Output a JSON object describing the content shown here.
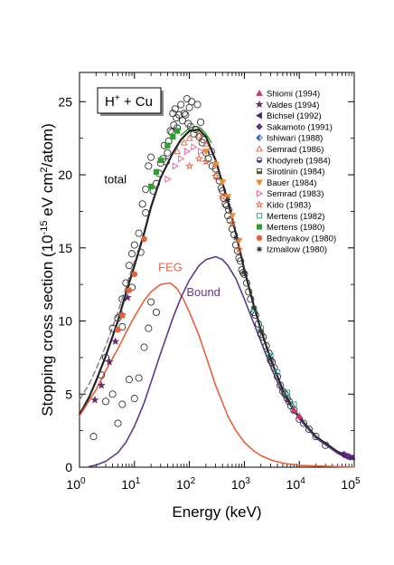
{
  "chart_data": {
    "type": "line",
    "title_box": {
      "main": "H",
      "sup": "+",
      "rest": " + Cu"
    },
    "xlabel": "Energy (keV)",
    "ylabel": {
      "pre": "Stopping cross section (10",
      "sup1": "-15",
      "mid": " eV cm",
      "sup2": "2",
      "post": "/atom)"
    },
    "xscale": "log",
    "xlim": [
      1,
      100000
    ],
    "ylim": [
      0,
      27
    ],
    "x_ticks": [
      {
        "base": "10",
        "exp": "0",
        "value": 1
      },
      {
        "base": "10",
        "exp": "1",
        "value": 10
      },
      {
        "base": "10",
        "exp": "2",
        "value": 100
      },
      {
        "base": "10",
        "exp": "3",
        "value": 1000
      },
      {
        "base": "10",
        "exp": "4",
        "value": 10000
      },
      {
        "base": "10",
        "exp": "5",
        "value": 100000
      }
    ],
    "y_ticks": [
      "0",
      "5",
      "10",
      "15",
      "20",
      "25"
    ],
    "y_tick_values": [
      0,
      5,
      10,
      15,
      20,
      25
    ],
    "colors": {
      "total": "#222222",
      "feg": "#e8603a",
      "bound": "#5e3a8c",
      "green": "#2ca02c",
      "dashed": "#7a7a7a"
    },
    "annotations": [
      {
        "key": "total",
        "text": "total",
        "x": 4.5,
        "y": 19.4,
        "color": "#000000"
      },
      {
        "key": "feg",
        "text": "FEG",
        "x": 45,
        "y": 13.4,
        "color": "#e8603a"
      },
      {
        "key": "bound",
        "text": "Bound",
        "x": 180,
        "y": 11.7,
        "color": "#5e3a8c"
      }
    ],
    "series": [
      {
        "key": "total",
        "style": "solid",
        "color": "#222222",
        "width": 2.2,
        "x": [
          1,
          1.5,
          2,
          3,
          5,
          7,
          10,
          15,
          20,
          30,
          50,
          70,
          100,
          150,
          200,
          300,
          500,
          700,
          1000,
          1500,
          2000,
          3000,
          5000,
          7000,
          10000,
          20000,
          50000,
          100000
        ],
        "y": [
          3.6,
          4.8,
          5.9,
          7.6,
          10.0,
          11.9,
          13.8,
          16.0,
          17.8,
          19.8,
          21.5,
          22.4,
          23.0,
          23.1,
          22.6,
          21.0,
          18.2,
          16.0,
          13.5,
          11.0,
          9.4,
          7.4,
          5.3,
          4.3,
          3.4,
          2.1,
          1.05,
          0.6
        ]
      },
      {
        "key": "dashed",
        "style": "dashed",
        "color": "#7a7a7a",
        "width": 1.4,
        "x": [
          1,
          1.5,
          2,
          3,
          5,
          7,
          10
        ],
        "y": [
          4.6,
          5.7,
          6.7,
          8.3,
          10.6,
          12.3,
          14.1
        ]
      },
      {
        "key": "green",
        "style": "solid",
        "color": "#2ca02c",
        "width": 1.4,
        "x": [
          70,
          100,
          130,
          160,
          200,
          250
        ],
        "y": [
          22.7,
          23.2,
          23.3,
          23.2,
          22.8,
          22.2
        ]
      },
      {
        "key": "feg",
        "style": "solid",
        "color": "#e8603a",
        "width": 1.6,
        "x": [
          1,
          2,
          3,
          5,
          7,
          10,
          15,
          20,
          30,
          45,
          60,
          80,
          100,
          150,
          200,
          300,
          500,
          700,
          1000,
          1500,
          2000,
          3000,
          5000,
          10000,
          100000
        ],
        "y": [
          3.5,
          5.3,
          6.6,
          8.1,
          9.2,
          10.3,
          11.4,
          12.0,
          12.5,
          12.6,
          12.2,
          11.4,
          10.6,
          9.0,
          7.6,
          5.6,
          3.5,
          2.5,
          1.7,
          1.1,
          0.8,
          0.5,
          0.28,
          0.12,
          0.01
        ]
      },
      {
        "key": "bound",
        "style": "solid",
        "color": "#5e3a8c",
        "width": 1.6,
        "x": [
          1.5,
          2,
          3,
          5,
          7,
          10,
          15,
          20,
          30,
          50,
          70,
          100,
          150,
          200,
          300,
          400,
          500,
          700,
          1000,
          1500,
          2000,
          3000,
          5000,
          10000,
          20000,
          50000,
          100000
        ],
        "y": [
          0.05,
          0.15,
          0.4,
          1.0,
          1.7,
          2.8,
          4.4,
          5.8,
          7.8,
          10.2,
          11.6,
          12.8,
          13.8,
          14.2,
          14.4,
          14.2,
          13.8,
          12.9,
          11.5,
          9.8,
          8.6,
          6.9,
          5.0,
          3.3,
          2.0,
          0.95,
          0.55
        ]
      }
    ],
    "legend": [
      {
        "label": "Shiomi (1994)",
        "marker": "triangle-up",
        "color": "#d6336c"
      },
      {
        "label": "Valdes (1994)",
        "marker": "star",
        "color": "#6b2a6b"
      },
      {
        "label": "Bichsel (1992)",
        "marker": "triangle-left",
        "color": "#4b2370"
      },
      {
        "label": "Sakamoto (1991)",
        "marker": "diamond",
        "color": "#5e2f86"
      },
      {
        "label": "Ishiwari (1988)",
        "marker": "half-diamond",
        "color": "#3d6bb0"
      },
      {
        "label": "Semrad (1986)",
        "marker": "triangle-up-open",
        "color": "#e8603a"
      },
      {
        "label": "Khodyreb (1984)",
        "marker": "half-circle",
        "color": "#5e3a8c"
      },
      {
        "label": "Sirotinin (1984)",
        "marker": "half-square",
        "color": "#555533"
      },
      {
        "label": "Bauer (1984)",
        "marker": "triangle-down",
        "color": "#f08a30"
      },
      {
        "label": "Semrad (1983)",
        "marker": "triangle-right-open",
        "color": "#e85a9a"
      },
      {
        "label": "Kido (1983)",
        "marker": "star-open",
        "color": "#e8603a"
      },
      {
        "label": "Mertens (1982)",
        "marker": "square-open",
        "color": "#2a9a8a"
      },
      {
        "label": "Mertens (1980)",
        "marker": "square",
        "color": "#2ca02c"
      },
      {
        "label": "Bednyakov (1980)",
        "marker": "circle",
        "color": "#e8603a"
      },
      {
        "label": "Izmailow (1980)",
        "marker": "asterisk",
        "color": "#333333"
      }
    ],
    "scatter_groups": [
      {
        "marker": "circle-open",
        "color": "#333333",
        "points": [
          [
            1.8,
            2.1
          ],
          [
            3,
            4.5
          ],
          [
            4,
            5
          ],
          [
            5,
            3
          ],
          [
            6,
            4.3
          ],
          [
            8,
            6
          ],
          [
            10,
            4.7
          ],
          [
            12,
            6.1
          ],
          [
            15,
            8.2
          ],
          [
            18,
            9.5
          ],
          [
            20,
            11.3
          ],
          [
            25,
            10.6
          ],
          [
            3,
            7.5
          ],
          [
            4,
            9.5
          ],
          [
            5,
            10.2
          ],
          [
            6,
            11.5
          ],
          [
            7,
            12.6
          ],
          [
            8,
            13.8
          ],
          [
            9,
            14.6
          ],
          [
            10,
            15.2
          ],
          [
            12,
            16
          ],
          [
            14,
            18
          ],
          [
            16,
            19
          ],
          [
            18,
            20.6
          ],
          [
            20,
            21.2
          ],
          [
            25,
            19.4
          ],
          [
            30,
            20.8
          ],
          [
            35,
            22
          ],
          [
            40,
            21.5
          ],
          [
            45,
            23
          ],
          [
            50,
            24.2
          ],
          [
            55,
            24.5
          ],
          [
            60,
            23.2
          ],
          [
            70,
            24.8
          ],
          [
            80,
            24.2
          ],
          [
            90,
            25.2
          ],
          [
            100,
            24.6
          ],
          [
            110,
            25
          ],
          [
            120,
            22.8
          ],
          [
            140,
            24.8
          ],
          [
            160,
            23.6
          ],
          [
            180,
            22.4
          ],
          [
            200,
            21.5
          ],
          [
            250,
            21.6
          ],
          [
            300,
            20.4
          ],
          [
            350,
            19.6
          ],
          [
            400,
            18.9
          ],
          [
            450,
            18
          ],
          [
            500,
            17.2
          ],
          [
            550,
            16.9
          ],
          [
            600,
            16.3
          ],
          [
            700,
            15.2
          ],
          [
            800,
            14.3
          ],
          [
            900,
            13.5
          ],
          [
            1000,
            13.2
          ],
          [
            1200,
            12
          ],
          [
            1500,
            10.6
          ],
          [
            1800,
            9.8
          ],
          [
            2000,
            9.1
          ],
          [
            2500,
            8.3
          ],
          [
            3000,
            7.3
          ],
          [
            3500,
            6.8
          ],
          [
            4000,
            6.2
          ],
          [
            5000,
            5.2
          ],
          [
            6000,
            4.7
          ],
          [
            7000,
            4.2
          ],
          [
            8000,
            3.9
          ],
          [
            10000,
            3.3
          ],
          [
            12000,
            3
          ],
          [
            15000,
            2.6
          ],
          [
            20000,
            2.1
          ],
          [
            30000,
            1.5
          ],
          [
            2.5,
            6.3
          ],
          [
            6,
            9.6
          ],
          [
            9,
            12.3
          ],
          [
            13,
            14.7
          ],
          [
            16,
            17.4
          ],
          [
            22,
            18.9
          ],
          [
            28,
            20.1
          ],
          [
            33,
            21.1
          ],
          [
            38,
            20.9
          ],
          [
            42,
            22.3
          ],
          [
            48,
            22.9
          ],
          [
            52,
            23.4
          ],
          [
            58,
            23.9
          ],
          [
            65,
            24.1
          ],
          [
            75,
            23.7
          ],
          [
            85,
            24.1
          ],
          [
            95,
            23.5
          ],
          [
            105,
            23.3
          ],
          [
            130,
            23.1
          ],
          [
            150,
            22.6
          ],
          [
            170,
            22.2
          ],
          [
            220,
            21.1
          ],
          [
            260,
            20.6
          ],
          [
            320,
            19.9
          ],
          [
            380,
            19.1
          ],
          [
            420,
            18.4
          ],
          [
            480,
            17.9
          ],
          [
            520,
            17.6
          ],
          [
            650,
            15.9
          ],
          [
            750,
            14.8
          ],
          [
            850,
            14.1
          ],
          [
            950,
            13.3
          ],
          [
            1100,
            12.6
          ],
          [
            1300,
            11.5
          ],
          [
            1600,
            10.4
          ],
          [
            2200,
            8.9
          ],
          [
            2800,
            7.8
          ],
          [
            3200,
            7.2
          ],
          [
            4500,
            5.6
          ],
          [
            5500,
            5.0
          ],
          [
            6500,
            4.5
          ]
        ]
      },
      {
        "marker": "star",
        "color": "#6b2a6b",
        "points": [
          [
            1.9,
            4.6
          ],
          [
            2.5,
            5.6
          ],
          [
            3.5,
            7.2
          ],
          [
            4.5,
            8.6
          ],
          [
            6,
            10.4
          ],
          [
            7.5,
            11.6
          ]
        ]
      },
      {
        "marker": "triangle-up-open",
        "color": "#e8603a",
        "points": [
          [
            60,
            21.6
          ],
          [
            80,
            22.2
          ],
          [
            100,
            22.5
          ],
          [
            150,
            22.7
          ],
          [
            200,
            22.1
          ],
          [
            300,
            20.8
          ]
        ]
      },
      {
        "marker": "triangle-right-open",
        "color": "#e85a9a",
        "points": [
          [
            40,
            19.7
          ],
          [
            55,
            20.6
          ],
          [
            70,
            21.1
          ],
          [
            90,
            21.6
          ],
          [
            120,
            21.9
          ],
          [
            160,
            21.6
          ]
        ]
      },
      {
        "marker": "star-open",
        "color": "#e8603a",
        "points": [
          [
            100,
            20.6
          ],
          [
            150,
            21.1
          ],
          [
            200,
            20.9
          ],
          [
            300,
            19.9
          ],
          [
            400,
            18.5
          ],
          [
            600,
            16.7
          ],
          [
            800,
            14.9
          ]
        ]
      },
      {
        "marker": "triangle-down",
        "color": "#f08a30",
        "points": [
          [
            200,
            21.6
          ],
          [
            300,
            20.7
          ],
          [
            400,
            19.5
          ],
          [
            500,
            18.5
          ],
          [
            600,
            17.2
          ],
          [
            800,
            15.5
          ]
        ]
      },
      {
        "marker": "square",
        "color": "#2ca02c",
        "points": [
          [
            20,
            19.2
          ],
          [
            25,
            20.2
          ],
          [
            30,
            21
          ],
          [
            40,
            22
          ],
          [
            50,
            22.6
          ],
          [
            60,
            23
          ]
        ]
      },
      {
        "marker": "square-open",
        "color": "#2a9a8a",
        "points": [
          [
            1500,
            10.8
          ],
          [
            2000,
            9.5
          ],
          [
            3000,
            7.6
          ],
          [
            4000,
            6.5
          ],
          [
            6000,
            5.1
          ],
          [
            8000,
            4.3
          ]
        ]
      },
      {
        "marker": "circle",
        "color": "#e8603a",
        "points": [
          [
            5,
            9.4
          ],
          [
            6,
            10.4
          ],
          [
            8,
            12.1
          ],
          [
            10,
            13.2
          ],
          [
            15,
            15.6
          ]
        ]
      },
      {
        "marker": "triangle-up",
        "color": "#d6336c",
        "points": [
          [
            8000,
            3.9
          ],
          [
            10000,
            3.5
          ]
        ]
      },
      {
        "marker": "diamond",
        "color": "#5e2f86",
        "points": [
          [
            65000,
            0.85
          ],
          [
            70000,
            0.8
          ],
          [
            75000,
            0.75
          ],
          [
            80000,
            0.72
          ],
          [
            85000,
            0.68
          ]
        ]
      },
      {
        "marker": "triangle-left",
        "color": "#4b2370",
        "points": [
          [
            60000,
            0.88
          ],
          [
            90000,
            0.66
          ]
        ]
      },
      {
        "marker": "asterisk",
        "color": "#333333",
        "points": [
          [
            500,
            18.3
          ],
          [
            700,
            15.7
          ],
          [
            1000,
            13.3
          ],
          [
            1500,
            10.9
          ],
          [
            2000,
            9.3
          ],
          [
            3000,
            7.4
          ]
        ]
      }
    ]
  }
}
